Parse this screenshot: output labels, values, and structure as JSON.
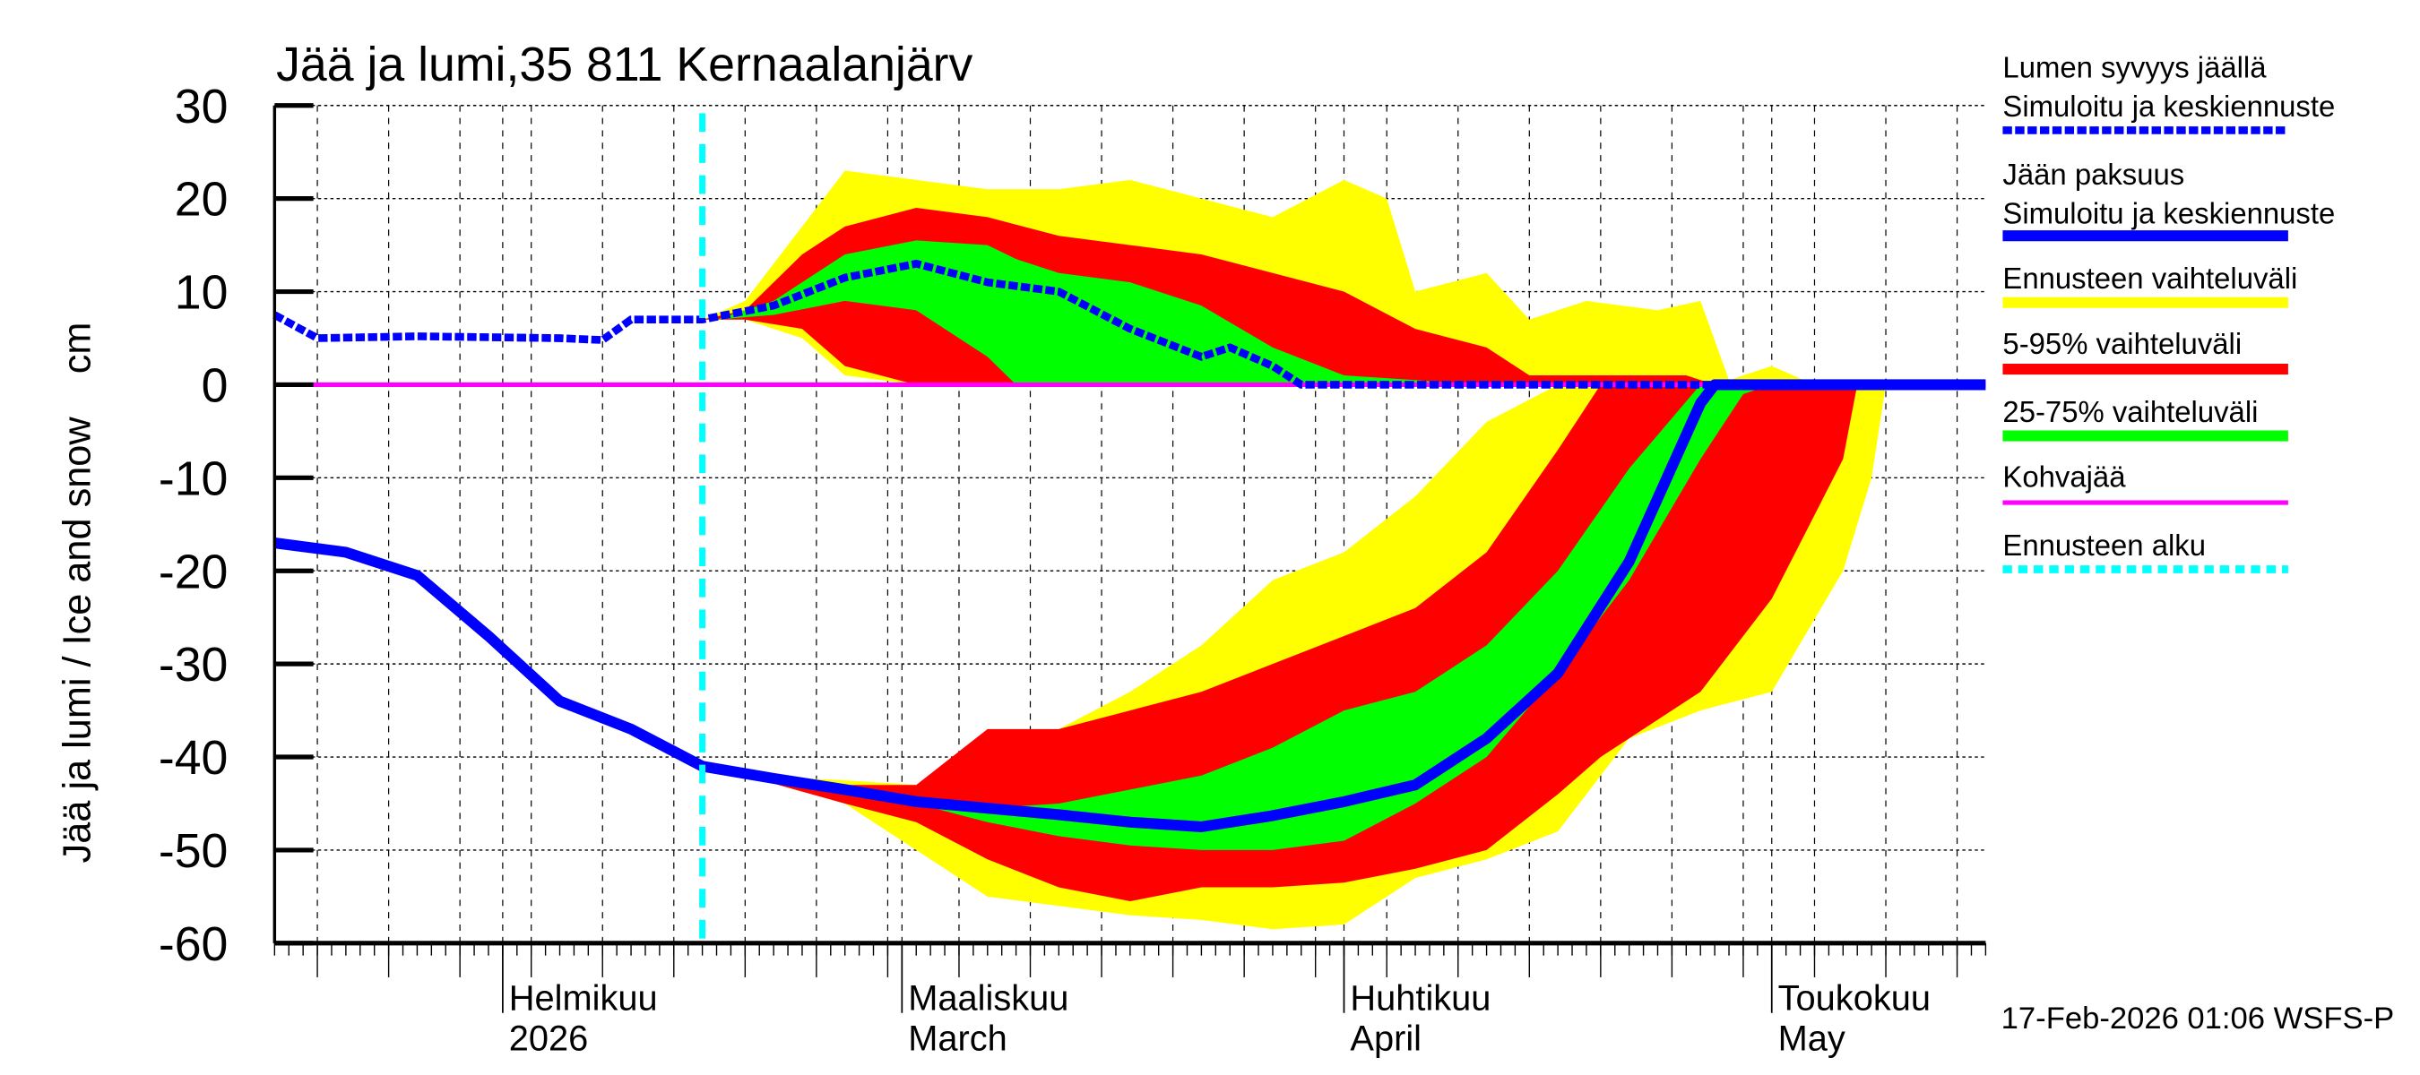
{
  "chart_data": {
    "type": "area",
    "title": "Jää ja lumi,35 811 Kernaalanjärv",
    "ylabel": "Jää ja lumi / Ice and snow    cm",
    "ylim": [
      -60,
      30
    ],
    "yticks": [
      30,
      20,
      10,
      0,
      -10,
      -20,
      -30,
      -40,
      -50,
      -60
    ],
    "xlim": [
      "2026-01-16",
      "2026-05-16"
    ],
    "grid": true,
    "legend_placement": "right",
    "months": [
      {
        "date": "2026-02-01",
        "fi": "Helmikuu",
        "en": "2026"
      },
      {
        "date": "2026-03-01",
        "fi": "Maaliskuu",
        "en": "March"
      },
      {
        "date": "2026-04-01",
        "fi": "Huhtikuu",
        "en": "April"
      },
      {
        "date": "2026-05-01",
        "fi": "Toukokuu",
        "en": "May"
      }
    ],
    "forecast_start": "2026-02-15",
    "colors": {
      "snow": "#0000ff",
      "ice": "#0000ff",
      "range": "#ffff00",
      "p5_95": "#ff0000",
      "p25_75": "#00ff00",
      "slush": "#ff00ff",
      "forecast_start": "#00ffff"
    },
    "snow_depth": [
      [
        "2026-01-16",
        7.5
      ],
      [
        "2026-01-19",
        5
      ],
      [
        "2026-01-26",
        5.2
      ],
      [
        "2026-02-05",
        5
      ],
      [
        "2026-02-08",
        4.8
      ],
      [
        "2026-02-10",
        7
      ],
      [
        "2026-02-15",
        7
      ],
      [
        "2026-02-20",
        8.5
      ],
      [
        "2026-02-25",
        11.5
      ],
      [
        "2026-03-02",
        13
      ],
      [
        "2026-03-07",
        11
      ],
      [
        "2026-03-12",
        10
      ],
      [
        "2026-03-17",
        6
      ],
      [
        "2026-03-22",
        3
      ],
      [
        "2026-03-24",
        4
      ],
      [
        "2026-03-27",
        2
      ],
      [
        "2026-03-29",
        0
      ],
      [
        "2026-04-27",
        0
      ]
    ],
    "ice_thickness": [
      [
        "2026-01-16",
        -17
      ],
      [
        "2026-01-21",
        -18
      ],
      [
        "2026-01-26",
        -20.5
      ],
      [
        "2026-01-31",
        -27
      ],
      [
        "2026-02-05",
        -34
      ],
      [
        "2026-02-10",
        -37
      ],
      [
        "2026-02-15",
        -41
      ],
      [
        "2026-02-20",
        -42.3
      ],
      [
        "2026-02-25",
        -43.5
      ],
      [
        "2026-03-02",
        -44.8
      ],
      [
        "2026-03-07",
        -45.5
      ],
      [
        "2026-03-12",
        -46.2
      ],
      [
        "2026-03-17",
        -47
      ],
      [
        "2026-03-22",
        -47.5
      ],
      [
        "2026-03-27",
        -46.3
      ],
      [
        "2026-04-01",
        -44.8
      ],
      [
        "2026-04-06",
        -43
      ],
      [
        "2026-04-11",
        -38
      ],
      [
        "2026-04-16",
        -31
      ],
      [
        "2026-04-21",
        -19
      ],
      [
        "2026-04-26",
        -2
      ],
      [
        "2026-04-27",
        0
      ],
      [
        "2026-05-16",
        0
      ]
    ],
    "snow_bands": {
      "range": [
        [
          "2026-02-15",
          7,
          7
        ],
        [
          "2026-02-18",
          7,
          9
        ],
        [
          "2026-02-22",
          5,
          17
        ],
        [
          "2026-02-25",
          1,
          23
        ],
        [
          "2026-03-02",
          0,
          22
        ],
        [
          "2026-03-07",
          0,
          21
        ],
        [
          "2026-03-12",
          0,
          21
        ],
        [
          "2026-03-17",
          0,
          22
        ],
        [
          "2026-03-22",
          0,
          20
        ],
        [
          "2026-03-27",
          0,
          18
        ],
        [
          "2026-04-01",
          0,
          22
        ],
        [
          "2026-04-04",
          0,
          20
        ],
        [
          "2026-04-06",
          0,
          10
        ],
        [
          "2026-04-11",
          0,
          12
        ],
        [
          "2026-04-14",
          0,
          7
        ],
        [
          "2026-04-18",
          0,
          9
        ],
        [
          "2026-04-23",
          0,
          8
        ],
        [
          "2026-04-26",
          0,
          9
        ],
        [
          "2026-04-28",
          0,
          0.5
        ],
        [
          "2026-05-01",
          0,
          2
        ],
        [
          "2026-05-04",
          0,
          0
        ]
      ],
      "p5_95": [
        [
          "2026-02-15",
          7,
          7
        ],
        [
          "2026-02-18",
          7,
          8
        ],
        [
          "2026-02-22",
          6,
          14
        ],
        [
          "2026-02-25",
          2,
          17
        ],
        [
          "2026-03-02",
          0,
          19
        ],
        [
          "2026-03-07",
          0,
          18
        ],
        [
          "2026-03-12",
          0,
          16
        ],
        [
          "2026-03-17",
          0,
          15
        ],
        [
          "2026-03-22",
          0,
          14
        ],
        [
          "2026-03-27",
          0,
          12
        ],
        [
          "2026-04-01",
          0,
          10
        ],
        [
          "2026-04-06",
          0,
          6
        ],
        [
          "2026-04-11",
          0,
          4
        ],
        [
          "2026-04-14",
          0,
          1
        ],
        [
          "2026-04-21",
          0,
          1
        ],
        [
          "2026-04-25",
          0,
          1
        ],
        [
          "2026-04-27",
          0,
          0
        ]
      ],
      "p25_75": [
        [
          "2026-02-16",
          7,
          7
        ],
        [
          "2026-02-20",
          7.5,
          9
        ],
        [
          "2026-02-25",
          9,
          14
        ],
        [
          "2026-03-02",
          8,
          15.5
        ],
        [
          "2026-03-07",
          3,
          15
        ],
        [
          "2026-03-09",
          0,
          13.5
        ],
        [
          "2026-03-12",
          0,
          12
        ],
        [
          "2026-03-17",
          0,
          11
        ],
        [
          "2026-03-22",
          0,
          8.5
        ],
        [
          "2026-03-27",
          0,
          4
        ],
        [
          "2026-04-01",
          0,
          1
        ],
        [
          "2026-04-06",
          0,
          0.5
        ],
        [
          "2026-04-10",
          0,
          0
        ]
      ]
    },
    "ice_bands": {
      "range": [
        [
          "2026-02-18",
          -42,
          -42
        ],
        [
          "2026-02-25",
          -45,
          -42.5
        ],
        [
          "2026-03-02",
          -50,
          -43
        ],
        [
          "2026-03-07",
          -55,
          -38
        ],
        [
          "2026-03-12",
          -56,
          -37
        ],
        [
          "2026-03-17",
          -57,
          -33
        ],
        [
          "2026-03-22",
          -57.5,
          -28
        ],
        [
          "2026-03-27",
          -58.5,
          -21
        ],
        [
          "2026-04-01",
          -58,
          -18
        ],
        [
          "2026-04-06",
          -53,
          -12
        ],
        [
          "2026-04-11",
          -51,
          -4
        ],
        [
          "2026-04-16",
          -48,
          0
        ],
        [
          "2026-04-21",
          -38,
          0
        ],
        [
          "2026-04-26",
          -35,
          0
        ],
        [
          "2026-05-01",
          -33,
          0
        ],
        [
          "2026-05-06",
          -20,
          0
        ],
        [
          "2026-05-08",
          -10,
          0
        ],
        [
          "2026-05-09",
          0,
          0
        ]
      ],
      "p5_95": [
        [
          "2026-02-18",
          -42,
          -42
        ],
        [
          "2026-02-25",
          -45,
          -43
        ],
        [
          "2026-03-02",
          -47,
          -43
        ],
        [
          "2026-03-07",
          -51,
          -37
        ],
        [
          "2026-03-12",
          -54,
          -37
        ],
        [
          "2026-03-17",
          -55.5,
          -35
        ],
        [
          "2026-03-22",
          -54,
          -33
        ],
        [
          "2026-03-27",
          -54,
          -30
        ],
        [
          "2026-04-01",
          -53.5,
          -27
        ],
        [
          "2026-04-06",
          -52,
          -24
        ],
        [
          "2026-04-11",
          -50,
          -18
        ],
        [
          "2026-04-16",
          -44,
          -7
        ],
        [
          "2026-04-19",
          -40,
          0
        ],
        [
          "2026-04-26",
          -33,
          0
        ],
        [
          "2026-05-01",
          -23,
          0
        ],
        [
          "2026-05-06",
          -8,
          0
        ],
        [
          "2026-05-07",
          0,
          0
        ]
      ],
      "p25_75": [
        [
          "2026-02-25",
          -44,
          -44
        ],
        [
          "2026-03-02",
          -45,
          -45
        ],
        [
          "2026-03-07",
          -47,
          -45.5
        ],
        [
          "2026-03-12",
          -48.5,
          -45
        ],
        [
          "2026-03-17",
          -49.5,
          -43.5
        ],
        [
          "2026-03-22",
          -50,
          -42
        ],
        [
          "2026-03-27",
          -50,
          -39
        ],
        [
          "2026-04-01",
          -49,
          -35
        ],
        [
          "2026-04-06",
          -45,
          -33
        ],
        [
          "2026-04-11",
          -40,
          -28
        ],
        [
          "2026-04-16",
          -31,
          -20
        ],
        [
          "2026-04-21",
          -21,
          -9
        ],
        [
          "2026-04-26",
          -8,
          0
        ],
        [
          "2026-04-29",
          -1,
          0
        ],
        [
          "2026-05-01",
          0,
          0
        ]
      ]
    },
    "legend": [
      {
        "line1": "Lumen syvyys jäällä",
        "line2": "Simuloitu ja keskiennuste",
        "key": "snow",
        "style": "dashed"
      },
      {
        "line1": "Jään paksuus",
        "line2": "Simuloitu ja keskiennuste",
        "key": "ice",
        "style": "solid"
      },
      {
        "line1": "Ennusteen vaihteluväli",
        "key": "range",
        "style": "bar"
      },
      {
        "line1": "5-95% vaihteluväli",
        "key": "p5_95",
        "style": "bar"
      },
      {
        "line1": "25-75% vaihteluväli",
        "key": "p25_75",
        "style": "bar"
      },
      {
        "line1": "Kohvajää",
        "key": "slush",
        "style": "thin"
      },
      {
        "line1": "Ennusteen alku",
        "key": "forecast_start",
        "style": "dashed-cyan"
      }
    ],
    "footer": "17-Feb-2026 01:06 WSFS-P"
  }
}
